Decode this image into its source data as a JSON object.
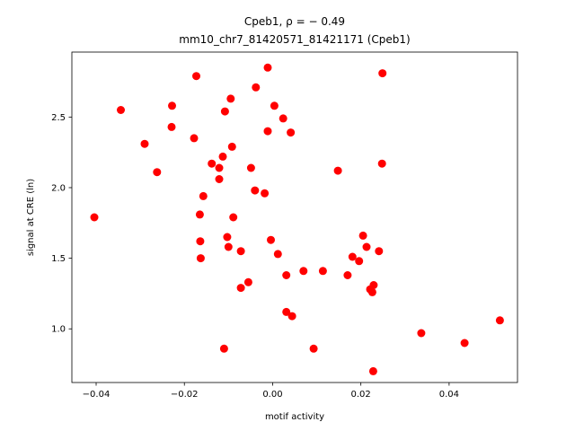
{
  "chart_data": {
    "type": "scatter",
    "title_line1": "Cpeb1, ρ = − 0.49",
    "title_line2": "mm10_chr7_81420571_81421171 (Cpeb1)",
    "xlabel": "motif activity",
    "ylabel": "signal at CRE (ln)",
    "xlim": [
      -0.0455,
      0.0555
    ],
    "ylim": [
      0.62,
      2.96
    ],
    "xticks": [
      -0.04,
      -0.02,
      0.0,
      0.02,
      0.04
    ],
    "xtick_labels": [
      "−0.04",
      "−0.02",
      "0.00",
      "0.02",
      "0.04"
    ],
    "yticks": [
      1.0,
      1.5,
      2.0,
      2.5
    ],
    "ytick_labels": [
      "1.0",
      "1.5",
      "2.0",
      "2.5"
    ],
    "marker_color": "#ff0000",
    "grid": false,
    "points": [
      {
        "x": -0.0404,
        "y": 1.79
      },
      {
        "x": -0.0344,
        "y": 2.55
      },
      {
        "x": -0.029,
        "y": 2.31
      },
      {
        "x": -0.0262,
        "y": 2.11
      },
      {
        "x": -0.0228,
        "y": 2.58
      },
      {
        "x": -0.0229,
        "y": 2.43
      },
      {
        "x": -0.0178,
        "y": 2.35
      },
      {
        "x": -0.0173,
        "y": 2.79
      },
      {
        "x": -0.0165,
        "y": 1.81
      },
      {
        "x": -0.0164,
        "y": 1.62
      },
      {
        "x": -0.0163,
        "y": 1.5
      },
      {
        "x": -0.0157,
        "y": 1.94
      },
      {
        "x": -0.0138,
        "y": 2.17
      },
      {
        "x": -0.0121,
        "y": 2.14
      },
      {
        "x": -0.0121,
        "y": 2.06
      },
      {
        "x": -0.0113,
        "y": 2.22
      },
      {
        "x": -0.0108,
        "y": 2.54
      },
      {
        "x": -0.011,
        "y": 0.86
      },
      {
        "x": -0.0103,
        "y": 1.65
      },
      {
        "x": -0.01,
        "y": 1.58
      },
      {
        "x": -0.0095,
        "y": 2.63
      },
      {
        "x": -0.0092,
        "y": 2.29
      },
      {
        "x": -0.0089,
        "y": 1.79
      },
      {
        "x": -0.0072,
        "y": 1.29
      },
      {
        "x": -0.0072,
        "y": 1.55
      },
      {
        "x": -0.0055,
        "y": 1.33
      },
      {
        "x": -0.0049,
        "y": 2.14
      },
      {
        "x": -0.004,
        "y": 1.98
      },
      {
        "x": -0.0038,
        "y": 2.71
      },
      {
        "x": -0.0018,
        "y": 1.96
      },
      {
        "x": -0.0011,
        "y": 2.85
      },
      {
        "x": -0.0011,
        "y": 2.4
      },
      {
        "x": -0.0004,
        "y": 1.63
      },
      {
        "x": 0.0004,
        "y": 2.58
      },
      {
        "x": 0.0012,
        "y": 1.53
      },
      {
        "x": 0.0024,
        "y": 2.49
      },
      {
        "x": 0.0031,
        "y": 1.38
      },
      {
        "x": 0.0031,
        "y": 1.12
      },
      {
        "x": 0.0041,
        "y": 2.39
      },
      {
        "x": 0.0044,
        "y": 1.09
      },
      {
        "x": 0.007,
        "y": 1.41
      },
      {
        "x": 0.0093,
        "y": 0.86
      },
      {
        "x": 0.0114,
        "y": 1.41
      },
      {
        "x": 0.0148,
        "y": 2.12
      },
      {
        "x": 0.017,
        "y": 1.38
      },
      {
        "x": 0.0181,
        "y": 1.51
      },
      {
        "x": 0.0196,
        "y": 1.48
      },
      {
        "x": 0.0205,
        "y": 1.66
      },
      {
        "x": 0.0213,
        "y": 1.58
      },
      {
        "x": 0.0221,
        "y": 1.28
      },
      {
        "x": 0.0226,
        "y": 1.26
      },
      {
        "x": 0.0229,
        "y": 1.31
      },
      {
        "x": 0.0228,
        "y": 0.7
      },
      {
        "x": 0.0241,
        "y": 1.55
      },
      {
        "x": 0.0249,
        "y": 2.81
      },
      {
        "x": 0.0248,
        "y": 2.17
      },
      {
        "x": 0.0337,
        "y": 0.97
      },
      {
        "x": 0.0435,
        "y": 0.9
      },
      {
        "x": 0.0515,
        "y": 1.06
      }
    ]
  }
}
